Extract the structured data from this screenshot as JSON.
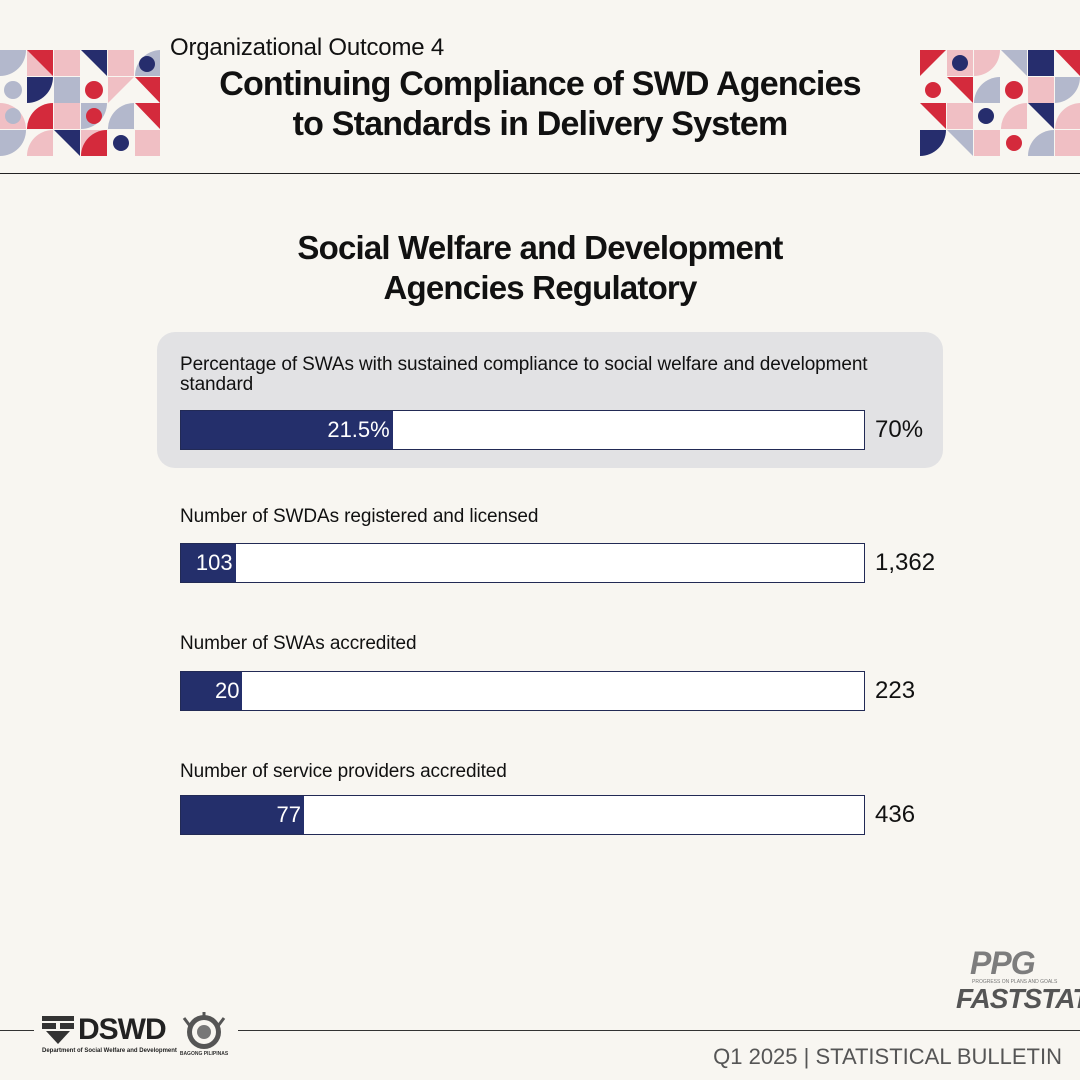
{
  "header": {
    "eyebrow": "Organizational Outcome 4",
    "title_line1": "Continuing Compliance of SWD Agencies",
    "title_line2": "to Standards in Delivery System"
  },
  "section_title_line1": "Social Welfare and Development",
  "section_title_line2": "Agencies Regulatory",
  "chart_data": {
    "type": "bar",
    "orientation": "horizontal",
    "description_note": "",
    "indicators": [
      {
        "label": "Percentage of SWAs with sustained compliance to social welfare and development standard",
        "value": 21.5,
        "value_label": "21.5%",
        "target": 70,
        "target_label": "70%",
        "fill_fraction": 0.31,
        "highlighted": true
      },
      {
        "label": "Number of SWDAs registered and licensed",
        "value": 103,
        "value_label": "103",
        "target": 1362,
        "target_label": "1,362",
        "fill_fraction": 0.08,
        "highlighted": false
      },
      {
        "label": "Number of SWAs accredited",
        "value": 20,
        "value_label": "20",
        "target": 223,
        "target_label": "223",
        "fill_fraction": 0.09,
        "highlighted": false
      },
      {
        "label": "Number of service providers accredited",
        "value": 77,
        "value_label": "77",
        "target": 436,
        "target_label": "436",
        "fill_fraction": 0.18,
        "highlighted": false
      }
    ]
  },
  "colors": {
    "bar_fill": "#242f6b",
    "bar_empty": "#ffffff",
    "highlight_box": "#e2e2e4",
    "background": "#f8f6f1",
    "deco_red": "#d42a3c",
    "deco_navy": "#262d6d",
    "deco_pink": "#f0bfc4",
    "deco_lavender": "#b3b8cc"
  },
  "logos": {
    "dswd_text": "DSWD",
    "dswd_subtitle": "Department of Social Welfare and Development",
    "bagong_text": "BAGONG PILIPINAS",
    "ppg_title": "PPG",
    "ppg_subtitle": "PROGRESS ON PLANS AND GOALS",
    "ppg_fast": "FASTSTAT"
  },
  "footer": "Q1 2025 | STATISTICAL BULLETIN"
}
